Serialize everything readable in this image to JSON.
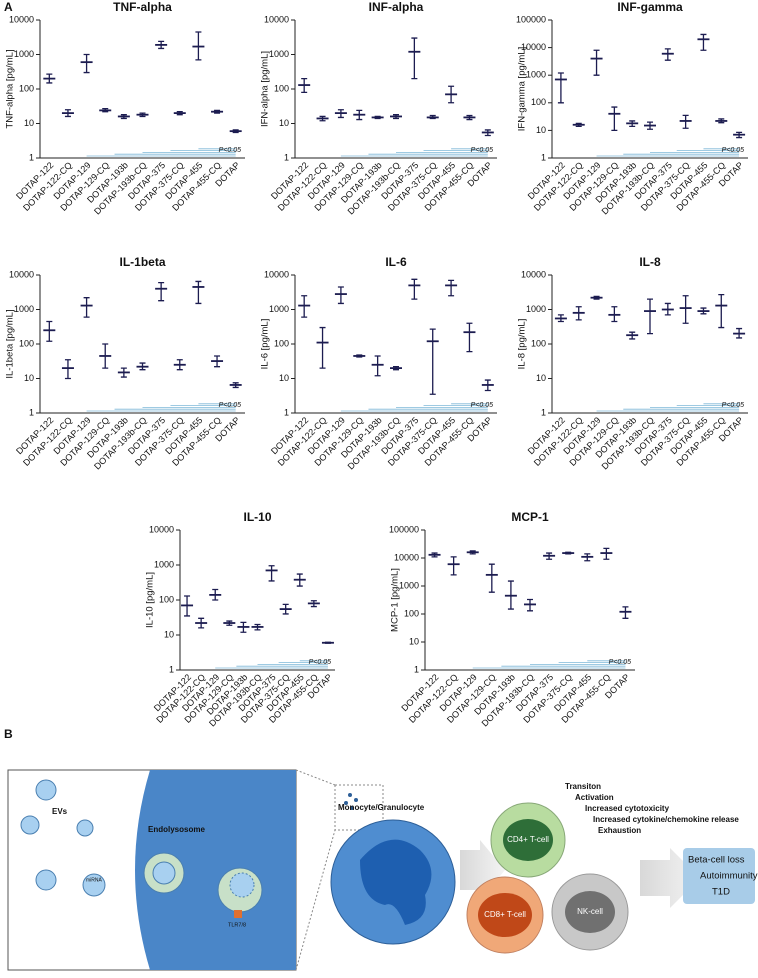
{
  "panel_labels": [
    "A",
    "B"
  ],
  "chart_data": [
    {
      "type": "errorbar",
      "title": "TNF-alpha",
      "y_label": "TNF-alpha [pg/mL]",
      "categories": [
        "DOTAP-122",
        "DOTAP-122-CQ",
        "DOTAP-129",
        "DOTAP-129-CQ",
        "DOTAP-193b",
        "DOTAP-193b-CQ",
        "DOTAP-375",
        "DOTAP-375-CQ",
        "DOTAP-455",
        "DOTAP-455-CQ",
        "DOTAP"
      ],
      "values": [
        200,
        20,
        600,
        24,
        16,
        18,
        1900,
        20,
        1700,
        22,
        6
      ],
      "lower": [
        150,
        16,
        300,
        22,
        14,
        16,
        1500,
        18,
        700,
        20,
        5.5
      ],
      "upper": [
        270,
        25,
        1000,
        27,
        18,
        20,
        2400,
        22,
        4500,
        24,
        6.5
      ],
      "color": "#1c1c50",
      "log": true,
      "ylim": [
        1,
        10000
      ],
      "yticks": [
        1,
        10,
        100,
        1000,
        10000
      ],
      "annotation": "P<0.05"
    },
    {
      "type": "errorbar",
      "title": "INF-alpha",
      "y_label": "IFN-alpha [pg/mL]",
      "categories": [
        "DOTAP-122",
        "DOTAP-122-CQ",
        "DOTAP-129",
        "DOTAP-129-CQ",
        "DOTAP-193b",
        "DOTAP-193b-CQ",
        "DOTAP-375",
        "DOTAP-375-CQ",
        "DOTAP-455",
        "DOTAP-455-CQ",
        "DOTAP"
      ],
      "values": [
        130,
        14,
        20,
        18,
        15,
        16,
        1200,
        15,
        70,
        15,
        5.5
      ],
      "lower": [
        80,
        12,
        15,
        13,
        14,
        14,
        200,
        14,
        40,
        13,
        4.5
      ],
      "upper": [
        200,
        16,
        25,
        24,
        16,
        18,
        3000,
        17,
        120,
        17,
        6.5
      ],
      "color": "#1c1c50",
      "log": true,
      "ylim": [
        1,
        10000
      ],
      "yticks": [
        1,
        10,
        100,
        1000,
        10000
      ],
      "annotation": "P<0.05"
    },
    {
      "type": "errorbar",
      "title": "INF-gamma",
      "y_label": "IFN-gamma [pg/mL]",
      "categories": [
        "DOTAP-122",
        "DOTAP-122-CQ",
        "DOTAP-129",
        "DOTAP-129-CQ",
        "DOTAP-193b",
        "DOTAP-193b-CQ",
        "DOTAP-375",
        "DOTAP-375-CQ",
        "DOTAP-455",
        "DOTAP-455-CQ",
        "DOTAP"
      ],
      "values": [
        700,
        16,
        4000,
        40,
        18,
        15,
        6000,
        22,
        20000,
        22,
        7
      ],
      "lower": [
        100,
        14,
        1000,
        10,
        14,
        11,
        3500,
        12,
        8000,
        19,
        5.5
      ],
      "upper": [
        1200,
        18,
        8000,
        70,
        22,
        20,
        9000,
        35,
        30000,
        26,
        8.5
      ],
      "color": "#1c1c50",
      "log": true,
      "ylim": [
        1,
        100000
      ],
      "yticks": [
        1,
        10,
        100,
        1000,
        10000,
        100000
      ],
      "annotation": "P<0.05"
    },
    {
      "type": "errorbar",
      "title": "IL-1beta",
      "y_label": "IL-1beta [pg/mL]",
      "categories": [
        "DOTAP-122",
        "DOTAP-122-CQ",
        "DOTAP-129",
        "DOTAP-129-CQ",
        "DOTAP-193b",
        "DOTAP-193b-CQ",
        "DOTAP-375",
        "DOTAP-375-CQ",
        "DOTAP-455",
        "DOTAP-455-CQ",
        "DOTAP"
      ],
      "values": [
        250,
        20,
        1300,
        45,
        15,
        22,
        4000,
        25,
        4500,
        32,
        6.5
      ],
      "lower": [
        120,
        10,
        600,
        20,
        11,
        18,
        1800,
        18,
        1500,
        22,
        5.5
      ],
      "upper": [
        450,
        35,
        2200,
        100,
        20,
        28,
        6000,
        35,
        6500,
        45,
        7.5
      ],
      "color": "#1c1c50",
      "log": true,
      "ylim": [
        1,
        10000
      ],
      "yticks": [
        1,
        10,
        100,
        1000,
        10000
      ],
      "annotation": "P<0.05"
    },
    {
      "type": "errorbar",
      "title": "IL-6",
      "y_label": "IL-6  [pg/mL]",
      "categories": [
        "DOTAP-122",
        "DOTAP-122-CQ",
        "DOTAP-129",
        "DOTAP-129-CQ",
        "DOTAP-193b",
        "DOTAP-193b-CQ",
        "DOTAP-375",
        "DOTAP-375-CQ",
        "DOTAP-455",
        "DOTAP-455-CQ",
        "DOTAP"
      ],
      "values": [
        1300,
        110,
        2800,
        45,
        25,
        20,
        5000,
        120,
        5000,
        220,
        6.5
      ],
      "lower": [
        600,
        20,
        1500,
        42,
        12,
        18,
        2000,
        3.5,
        2500,
        60,
        4.5
      ],
      "upper": [
        2500,
        300,
        4500,
        48,
        45,
        22,
        7500,
        270,
        7000,
        400,
        9
      ],
      "color": "#1c1c50",
      "log": true,
      "ylim": [
        1,
        10000
      ],
      "yticks": [
        1,
        10,
        100,
        1000,
        10000
      ],
      "annotation": "P<0.05"
    },
    {
      "type": "errorbar",
      "title": "IL-8",
      "y_label": "IL-8  [pg/mL]",
      "categories": [
        "DOTAP-122",
        "DOTAP-122-CQ",
        "DOTAP-129",
        "DOTAP-129-CQ",
        "DOTAP-193b",
        "DOTAP-193b-CQ",
        "DOTAP-375",
        "DOTAP-375-CQ",
        "DOTAP-455",
        "DOTAP-455-CQ",
        "DOTAP"
      ],
      "values": [
        550,
        800,
        2200,
        700,
        180,
        900,
        1000,
        1100,
        900,
        1300,
        200
      ],
      "lower": [
        450,
        500,
        2000,
        450,
        140,
        200,
        700,
        400,
        750,
        300,
        150
      ],
      "upper": [
        700,
        1200,
        2400,
        1200,
        220,
        2000,
        1500,
        2500,
        1100,
        2700,
        280
      ],
      "color": "#1c1c50",
      "log": true,
      "ylim": [
        1,
        10000
      ],
      "yticks": [
        1,
        10,
        100,
        1000,
        10000
      ],
      "annotation": "P<0.05"
    },
    {
      "type": "errorbar",
      "title": "IL-10",
      "y_label": "IL-10  [pg/mL]",
      "categories": [
        "DOTAP-122",
        "DOTAP-122-CQ",
        "DOTAP-129",
        "DOTAP-129-CQ",
        "DOTAP-193b",
        "DOTAP-193b-CQ",
        "DOTAP-375",
        "DOTAP-375-CQ",
        "DOTAP-455",
        "DOTAP-455-CQ",
        "DOTAP"
      ],
      "values": [
        70,
        22,
        140,
        22,
        17,
        17,
        700,
        55,
        380,
        80,
        6
      ],
      "lower": [
        35,
        16,
        100,
        19,
        12,
        14,
        350,
        40,
        250,
        65,
        5.8
      ],
      "upper": [
        130,
        30,
        200,
        25,
        23,
        20,
        950,
        75,
        550,
        95,
        6.2
      ],
      "color": "#1c1c50",
      "log": true,
      "ylim": [
        1,
        10000
      ],
      "yticks": [
        1,
        10,
        100,
        1000,
        10000
      ],
      "annotation": "P<0.05"
    },
    {
      "type": "errorbar",
      "title": "MCP-1",
      "y_label": "MCP-1  [pg/mL]",
      "categories": [
        "DOTAP-122",
        "DOTAP-122-CQ",
        "DOTAP-129",
        "DOTAP-129-CQ",
        "DOTAP-193b",
        "DOTAP-193b-CQ",
        "DOTAP-375",
        "DOTAP-375-CQ",
        "DOTAP-455",
        "DOTAP-455-CQ",
        "DOTAP"
      ],
      "values": [
        13000,
        6000,
        16000,
        2500,
        450,
        220,
        12000,
        15000,
        11000,
        15000,
        120
      ],
      "lower": [
        11000,
        2500,
        14000,
        600,
        150,
        130,
        9000,
        14000,
        8000,
        9000,
        70
      ],
      "upper": [
        15000,
        11000,
        18000,
        6000,
        1500,
        330,
        15000,
        16000,
        14000,
        22000,
        180
      ],
      "color": "#1c1c50",
      "log": true,
      "ylim": [
        1,
        100000
      ],
      "yticks": [
        1,
        10,
        100,
        1000,
        10000,
        100000
      ],
      "annotation": "P<0.05"
    }
  ],
  "diagram": {
    "evs": "EVs",
    "mirna": "miRNA",
    "endolysosome": "Endolysosome",
    "tlr": "TLR7/8",
    "monocyte": "Monocyte/Granulocyte",
    "cd4": "CD4+ T-cell",
    "cd8": "CD8+ T-cell",
    "nk": "NK-cell",
    "effects": [
      "Transiton",
      "Activation",
      "Increased cytotoxicity",
      "Increased cytokine/chemokine release",
      "Exhaustion"
    ],
    "outcomes": [
      "Beta-cell loss",
      "Autoimmunity",
      "T1D"
    ]
  }
}
